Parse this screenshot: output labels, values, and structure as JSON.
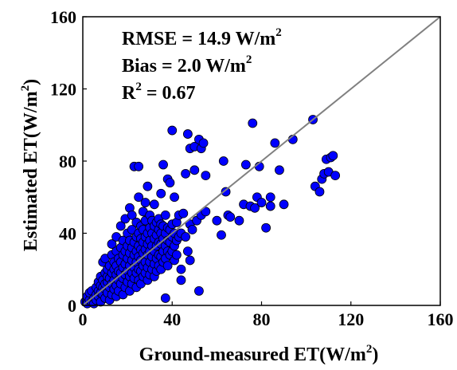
{
  "chart_data": {
    "type": "scatter",
    "xlabel": "Ground-measured ET(W/m",
    "xlabel_sup": "2",
    "xlabel_tail": ")",
    "ylabel": "Estimated ET(W/m",
    "ylabel_sup": "2",
    "ylabel_tail": ")",
    "xlim": [
      0,
      160
    ],
    "ylim": [
      0,
      160
    ],
    "xticks": [
      0,
      40,
      80,
      120,
      160
    ],
    "yticks": [
      0,
      40,
      80,
      120,
      160
    ],
    "x_tick_labels": [
      "0",
      "40",
      "80",
      "120",
      "160"
    ],
    "y_tick_labels": [
      "0",
      "40",
      "80",
      "120",
      "160"
    ],
    "grid": false,
    "annotations": {
      "rmse": "RMSE = 14.9 W/m",
      "rmse_sup": "2",
      "bias": "Bias = 2.0 W/m",
      "bias_sup": "2",
      "r2_base": "R",
      "r2_sup": "2",
      "r2_value": " = 0.67"
    },
    "reference_line": {
      "x": [
        0,
        160
      ],
      "y": [
        0,
        160
      ],
      "color": "#808080"
    },
    "marker_color": "#0000ff",
    "marker_edge": "#000000",
    "points": [
      [
        1,
        2
      ],
      [
        2,
        5
      ],
      [
        2,
        1
      ],
      [
        3,
        3
      ],
      [
        3,
        7
      ],
      [
        4,
        2
      ],
      [
        4,
        8
      ],
      [
        5,
        4
      ],
      [
        5,
        1
      ],
      [
        6,
        6
      ],
      [
        6,
        10
      ],
      [
        6,
        3
      ],
      [
        7,
        8
      ],
      [
        7,
        5
      ],
      [
        7,
        13
      ],
      [
        8,
        2
      ],
      [
        8,
        7
      ],
      [
        8,
        11
      ],
      [
        8,
        16
      ],
      [
        9,
        6
      ],
      [
        9,
        10
      ],
      [
        9,
        14
      ],
      [
        9,
        24
      ],
      [
        10,
        4
      ],
      [
        10,
        9
      ],
      [
        10,
        12
      ],
      [
        10,
        18
      ],
      [
        10,
        26
      ],
      [
        11,
        7
      ],
      [
        11,
        13
      ],
      [
        11,
        16
      ],
      [
        11,
        20
      ],
      [
        12,
        3
      ],
      [
        12,
        10
      ],
      [
        12,
        15
      ],
      [
        12,
        22
      ],
      [
        13,
        6
      ],
      [
        13,
        12
      ],
      [
        13,
        18
      ],
      [
        13,
        28
      ],
      [
        13,
        34
      ],
      [
        14,
        9
      ],
      [
        14,
        14
      ],
      [
        14,
        20
      ],
      [
        14,
        24
      ],
      [
        15,
        5
      ],
      [
        15,
        11
      ],
      [
        15,
        17
      ],
      [
        15,
        22
      ],
      [
        15,
        30
      ],
      [
        15,
        38
      ],
      [
        16,
        8
      ],
      [
        16,
        14
      ],
      [
        16,
        19
      ],
      [
        16,
        26
      ],
      [
        17,
        12
      ],
      [
        17,
        18
      ],
      [
        17,
        24
      ],
      [
        17,
        32
      ],
      [
        17,
        44
      ],
      [
        18,
        6
      ],
      [
        18,
        15
      ],
      [
        18,
        21
      ],
      [
        18,
        28
      ],
      [
        18,
        36
      ],
      [
        19,
        10
      ],
      [
        19,
        17
      ],
      [
        19,
        23
      ],
      [
        19,
        30
      ],
      [
        19,
        48
      ],
      [
        20,
        13
      ],
      [
        20,
        19
      ],
      [
        20,
        26
      ],
      [
        20,
        33
      ],
      [
        20,
        40
      ],
      [
        21,
        8
      ],
      [
        21,
        16
      ],
      [
        21,
        22
      ],
      [
        21,
        29
      ],
      [
        21,
        36
      ],
      [
        21,
        54
      ],
      [
        22,
        12
      ],
      [
        22,
        18
      ],
      [
        22,
        25
      ],
      [
        22,
        32
      ],
      [
        22,
        42
      ],
      [
        22,
        50
      ],
      [
        23,
        15
      ],
      [
        23,
        21
      ],
      [
        23,
        28
      ],
      [
        23,
        35
      ],
      [
        23,
        77
      ],
      [
        24,
        10
      ],
      [
        24,
        18
      ],
      [
        24,
        24
      ],
      [
        24,
        30
      ],
      [
        24,
        38
      ],
      [
        24,
        46
      ],
      [
        25,
        14
      ],
      [
        25,
        20
      ],
      [
        25,
        27
      ],
      [
        25,
        33
      ],
      [
        25,
        40
      ],
      [
        25,
        60
      ],
      [
        25,
        77
      ],
      [
        26,
        12
      ],
      [
        26,
        19
      ],
      [
        26,
        25
      ],
      [
        26,
        31
      ],
      [
        26,
        37
      ],
      [
        26,
        44
      ],
      [
        27,
        16
      ],
      [
        27,
        22
      ],
      [
        27,
        29
      ],
      [
        27,
        35
      ],
      [
        27,
        42
      ],
      [
        27,
        52
      ],
      [
        28,
        18
      ],
      [
        28,
        24
      ],
      [
        28,
        31
      ],
      [
        28,
        38
      ],
      [
        28,
        47
      ],
      [
        28,
        57
      ],
      [
        29,
        14
      ],
      [
        29,
        21
      ],
      [
        29,
        28
      ],
      [
        29,
        34
      ],
      [
        29,
        40
      ],
      [
        29,
        66
      ],
      [
        30,
        17
      ],
      [
        30,
        24
      ],
      [
        30,
        30
      ],
      [
        30,
        36
      ],
      [
        30,
        43
      ],
      [
        30,
        50
      ],
      [
        31,
        20
      ],
      [
        31,
        27
      ],
      [
        31,
        33
      ],
      [
        31,
        40
      ],
      [
        31,
        47
      ],
      [
        32,
        16
      ],
      [
        32,
        23
      ],
      [
        32,
        30
      ],
      [
        32,
        37
      ],
      [
        32,
        44
      ],
      [
        32,
        56
      ],
      [
        33,
        19
      ],
      [
        33,
        26
      ],
      [
        33,
        33
      ],
      [
        33,
        39
      ],
      [
        33,
        46
      ],
      [
        34,
        22
      ],
      [
        34,
        28
      ],
      [
        34,
        35
      ],
      [
        34,
        42
      ],
      [
        34,
        48
      ],
      [
        35,
        20
      ],
      [
        35,
        27
      ],
      [
        35,
        34
      ],
      [
        35,
        40
      ],
      [
        35,
        45
      ],
      [
        35,
        62
      ],
      [
        36,
        24
      ],
      [
        36,
        30
      ],
      [
        36,
        37
      ],
      [
        36,
        44
      ],
      [
        36,
        78
      ],
      [
        37,
        4
      ],
      [
        37,
        26
      ],
      [
        37,
        33
      ],
      [
        37,
        40
      ],
      [
        37,
        50
      ],
      [
        38,
        22
      ],
      [
        38,
        30
      ],
      [
        38,
        36
      ],
      [
        38,
        43
      ],
      [
        38,
        70
      ],
      [
        39,
        28
      ],
      [
        39,
        35
      ],
      [
        39,
        42
      ],
      [
        39,
        68
      ],
      [
        40,
        97
      ],
      [
        40,
        30
      ],
      [
        40,
        38
      ],
      [
        40,
        45
      ],
      [
        41,
        25
      ],
      [
        41,
        33
      ],
      [
        41,
        40
      ],
      [
        41,
        60
      ],
      [
        42,
        28
      ],
      [
        42,
        36
      ],
      [
        42,
        46
      ],
      [
        43,
        38
      ],
      [
        43,
        50
      ],
      [
        44,
        14
      ],
      [
        44,
        20
      ],
      [
        44,
        40
      ],
      [
        45,
        51
      ],
      [
        46,
        73
      ],
      [
        46,
        38
      ],
      [
        47,
        95
      ],
      [
        47,
        30
      ],
      [
        48,
        25
      ],
      [
        48,
        87
      ],
      [
        48,
        45
      ],
      [
        49,
        42
      ],
      [
        50,
        88
      ],
      [
        50,
        75
      ],
      [
        51,
        47
      ],
      [
        52,
        92
      ],
      [
        52,
        8
      ],
      [
        53,
        50
      ],
      [
        53,
        87
      ],
      [
        54,
        90
      ],
      [
        55,
        72
      ],
      [
        55,
        52
      ],
      [
        60,
        47
      ],
      [
        62,
        39
      ],
      [
        63,
        80
      ],
      [
        64,
        63
      ],
      [
        65,
        50
      ],
      [
        66,
        49
      ],
      [
        70,
        47
      ],
      [
        72,
        56
      ],
      [
        73,
        78
      ],
      [
        75,
        55
      ],
      [
        76,
        101
      ],
      [
        77,
        54
      ],
      [
        78,
        60
      ],
      [
        79,
        77
      ],
      [
        80,
        57
      ],
      [
        82,
        43
      ],
      [
        84,
        55
      ],
      [
        84,
        60
      ],
      [
        86,
        90
      ],
      [
        88,
        75
      ],
      [
        90,
        56
      ],
      [
        94,
        92
      ],
      [
        103,
        103
      ],
      [
        104,
        66
      ],
      [
        106,
        63
      ],
      [
        107,
        70
      ],
      [
        108,
        73
      ],
      [
        109,
        81
      ],
      [
        110,
        74
      ],
      [
        111,
        82
      ],
      [
        112,
        83
      ],
      [
        113,
        72
      ]
    ]
  }
}
